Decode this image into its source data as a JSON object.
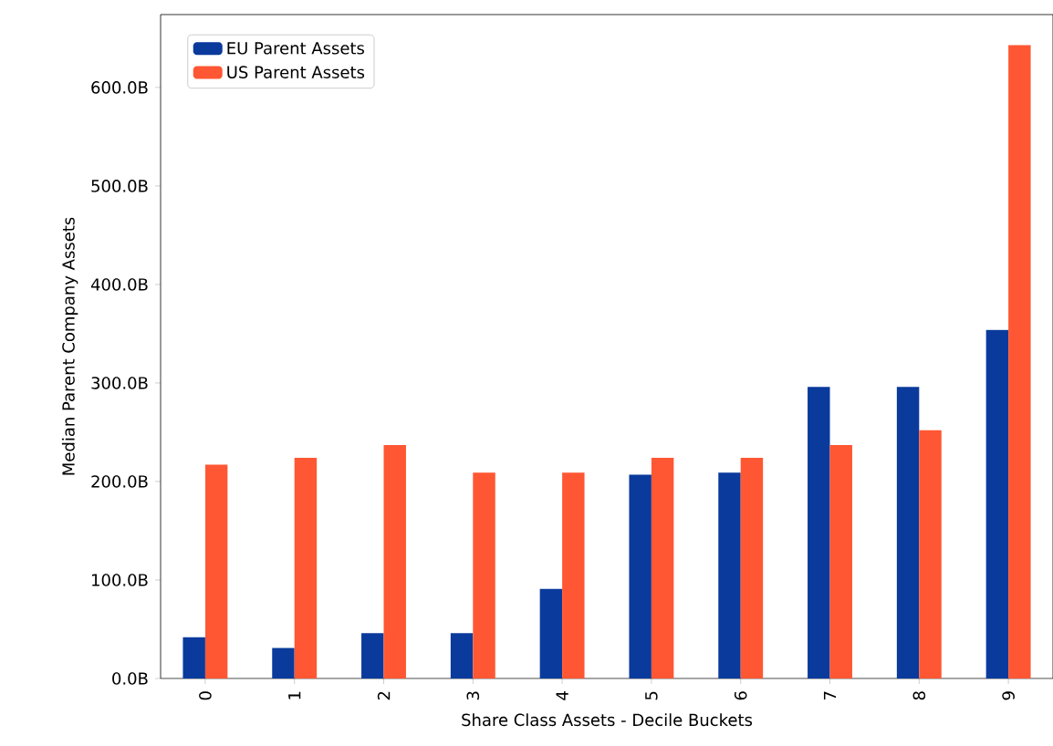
{
  "chart_data": {
    "type": "bar",
    "xlabel": "Share Class Assets - Decile Buckets",
    "ylabel": "Median Parent Company Assets",
    "categories": [
      "0",
      "1",
      "2",
      "3",
      "4",
      "5",
      "6",
      "7",
      "8",
      "9"
    ],
    "series": [
      {
        "name": "EU Parent Assets",
        "color": "#0a3a9c",
        "values": [
          42,
          31,
          46,
          46,
          91,
          207,
          209,
          296,
          296,
          354
        ]
      },
      {
        "name": "US Parent Assets",
        "color": "#ff5733",
        "values": [
          217,
          224,
          237,
          209,
          209,
          224,
          224,
          237,
          252,
          643
        ]
      }
    ],
    "ylim": [
      0,
      674
    ],
    "yticks": [
      {
        "value": 0,
        "label": "0.0B"
      },
      {
        "value": 100,
        "label": "100.0B"
      },
      {
        "value": 200,
        "label": "200.0B"
      },
      {
        "value": 300,
        "label": "300.0B"
      },
      {
        "value": 400,
        "label": "400.0B"
      },
      {
        "value": 500,
        "label": "500.0B"
      },
      {
        "value": 600,
        "label": "600.0B"
      }
    ],
    "legend": "top left",
    "grid": false
  }
}
